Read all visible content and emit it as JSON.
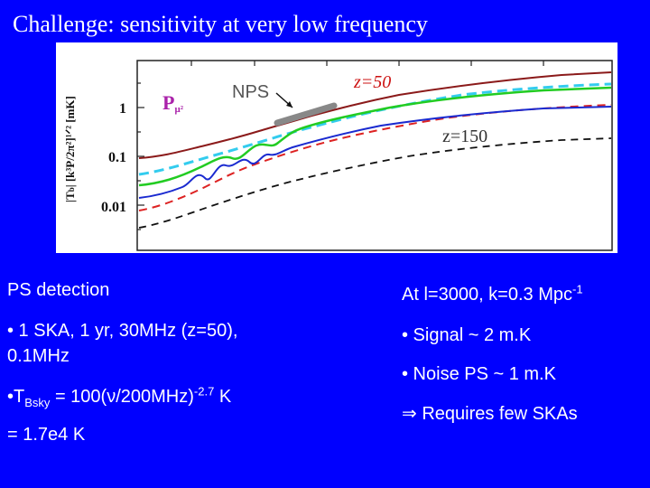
{
  "slide": {
    "title": "Challenge: sensitivity at very low frequency",
    "plot": {
      "y_label_math": "|T",
      "y_label_sub": "b",
      "y_label_rest": "| [k³P/2π²]¹ᐟ² [mK]",
      "y_ticks": [
        "1",
        "0.1",
        "0.01"
      ],
      "legend_p": "P",
      "legend_p_sub": "μ²",
      "nps_label": "NPS",
      "z50_label": "z=50",
      "z150_label": "z=150",
      "colors": {
        "brown": "#8b1a1a",
        "cyan": "#33ccee",
        "green": "#22cc22",
        "red": "#dd2222",
        "blue": "#1a2ad0",
        "black": "#111111",
        "gray": "#888888"
      }
    },
    "left": {
      "heading": "PS  detection",
      "bullet1_line1": "• 1 SKA, 1 yr, 30MHz (z=50),",
      "bullet1_line2": "0.1MHz",
      "bullet2_prefix": "•T",
      "bullet2_sub": "Bsky",
      "bullet2_mid": " = 100(ν/200MHz)",
      "bullet2_sup": "-2.7",
      "bullet2_suffix": " K",
      "result": "= 1.7e4 K"
    },
    "right": {
      "heading_prefix": "At l=3000, k=0.3 Mpc",
      "heading_sup": "-1",
      "bullet1": "• Signal ~ 2 m.K",
      "bullet2": "• Noise PS ~ 1 m.K",
      "conclusion": "⇒ Requires few SKAs"
    }
  }
}
